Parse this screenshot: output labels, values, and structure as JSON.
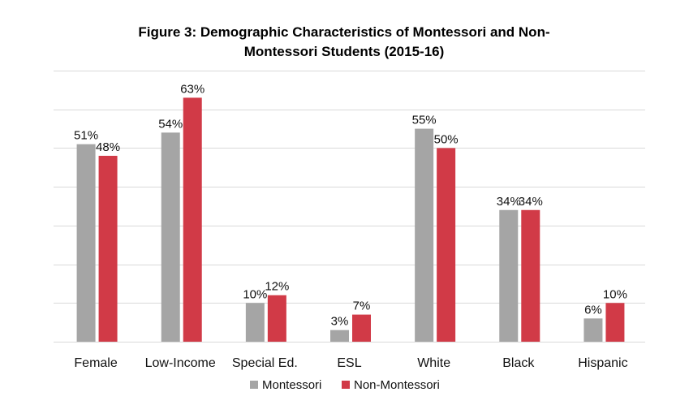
{
  "chart_data": {
    "type": "bar",
    "title_line1": "Figure 3: Demographic Characteristics of Montessori and Non-",
    "title_line2": "Montessori Students (2015-16)",
    "categories": [
      "Female",
      "Low-Income",
      "Special Ed.",
      "ESL",
      "White",
      "Black",
      "Hispanic"
    ],
    "series": [
      {
        "name": "Montessori",
        "values": [
          51,
          54,
          10,
          3,
          55,
          34,
          6
        ],
        "labels": [
          "51%",
          "54%",
          "10%",
          "3%",
          "55%",
          "34%",
          "6%"
        ]
      },
      {
        "name": "Non-Montessori",
        "values": [
          48,
          63,
          12,
          7,
          50,
          34,
          10
        ],
        "labels": [
          "48%",
          "63%",
          "12%",
          "7%",
          "50%",
          "34%",
          "10%"
        ]
      }
    ],
    "ylim": [
      0,
      70
    ],
    "grid": true,
    "legend_position": "bottom",
    "colors": {
      "Montessori": "#a5a5a5",
      "Non-Montessori": "#d13a47"
    }
  }
}
